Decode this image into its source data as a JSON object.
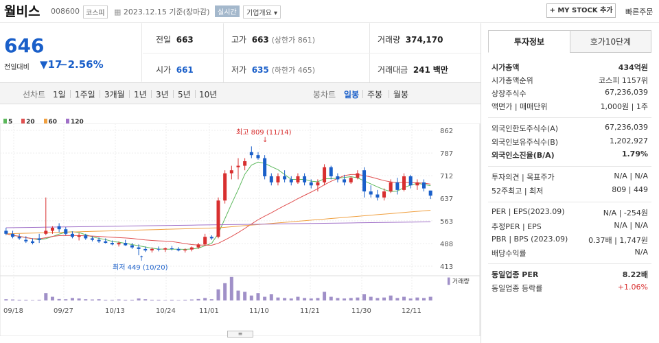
{
  "header": {
    "name": "월비스",
    "code": "008600",
    "market": "코스피",
    "date": "2023.12.15 기준(장마감)",
    "realtime": "실시간",
    "company_info": "기업개요 ▾",
    "mystock": "+ MY STOCK 추가",
    "quick_order": "빠른주문"
  },
  "price": {
    "current": "646",
    "change_label": "전일대비",
    "change_value": "▼17",
    "change_pct": "−2.56%"
  },
  "quotes": {
    "prev_label": "전일",
    "prev": "663",
    "high_label": "고가",
    "high": "663",
    "upper": "(상한가 861)",
    "vol_label": "거래량",
    "vol": "374,170",
    "open_label": "시가",
    "open": "661",
    "low_label": "저가",
    "low": "635",
    "lower": "(하한가 465)",
    "amt_label": "거래대금",
    "amt": "241",
    "amt_unit": "백만"
  },
  "tabs": {
    "line_chart": "선차트",
    "d1": "1일",
    "w1": "1주일",
    "m3": "3개월",
    "y1": "1년",
    "y3": "3년",
    "y5": "5년",
    "y10": "10년",
    "candle": "봉차트",
    "daily": "일봉",
    "weekly": "주봉",
    "monthly": "월봉"
  },
  "legend": {
    "ma5": "5",
    "ma20": "20",
    "ma60": "60",
    "ma120": "120"
  },
  "colors": {
    "up": "#d82f2f",
    "down": "#1a5fc9",
    "ma5": "#5cb85c",
    "ma20": "#e05050",
    "ma60": "#f0a040",
    "ma120": "#a070c8",
    "volume": "#a090c8"
  },
  "annotations": {
    "high": "최고 809 (11/14)",
    "low": "최저 449 (10/20)",
    "volume_label": "거래량"
  },
  "chart_data": {
    "type": "candlestick",
    "y_ticks": [
      "862",
      "787",
      "712",
      "637",
      "563",
      "488",
      "413"
    ],
    "ylim": [
      413,
      862
    ],
    "x_ticks": [
      "09/18",
      "09/27",
      "10/13",
      "10/24",
      "11/01",
      "11/10",
      "11/21",
      "11/30",
      "12/11"
    ],
    "ohlc": [
      [
        530,
        540,
        515,
        520
      ],
      [
        520,
        530,
        505,
        510
      ],
      [
        510,
        520,
        500,
        505
      ],
      [
        500,
        512,
        490,
        495
      ],
      [
        495,
        505,
        485,
        490
      ],
      [
        505,
        520,
        490,
        500
      ],
      [
        520,
        640,
        515,
        530
      ],
      [
        530,
        545,
        520,
        540
      ],
      [
        545,
        555,
        525,
        535
      ],
      [
        535,
        542,
        515,
        520
      ],
      [
        520,
        528,
        505,
        510
      ],
      [
        510,
        522,
        498,
        515
      ],
      [
        515,
        520,
        500,
        505
      ],
      [
        505,
        512,
        495,
        500
      ],
      [
        500,
        508,
        490,
        495
      ],
      [
        495,
        505,
        488,
        490
      ],
      [
        490,
        498,
        482,
        485
      ],
      [
        485,
        495,
        478,
        490
      ],
      [
        490,
        500,
        480,
        482
      ],
      [
        482,
        490,
        470,
        475
      ],
      [
        475,
        485,
        449,
        470
      ],
      [
        470,
        478,
        460,
        465
      ],
      [
        465,
        475,
        458,
        470
      ],
      [
        470,
        478,
        462,
        468
      ],
      [
        468,
        475,
        460,
        472
      ],
      [
        472,
        480,
        465,
        470
      ],
      [
        470,
        476,
        462,
        465
      ],
      [
        465,
        472,
        458,
        468
      ],
      [
        468,
        478,
        462,
        475
      ],
      [
        475,
        490,
        470,
        485
      ],
      [
        485,
        520,
        480,
        510
      ],
      [
        510,
        515,
        500,
        505
      ],
      [
        510,
        640,
        505,
        630
      ],
      [
        630,
        730,
        620,
        720
      ],
      [
        720,
        745,
        700,
        730
      ],
      [
        740,
        770,
        700,
        745
      ],
      [
        745,
        770,
        730,
        760
      ],
      [
        790,
        809,
        770,
        780
      ],
      [
        780,
        790,
        765,
        770
      ],
      [
        770,
        780,
        700,
        710
      ],
      [
        710,
        720,
        680,
        690
      ],
      [
        690,
        720,
        680,
        710
      ],
      [
        710,
        730,
        690,
        700
      ],
      [
        700,
        710,
        680,
        690
      ],
      [
        690,
        720,
        685,
        710
      ],
      [
        710,
        720,
        680,
        690
      ],
      [
        690,
        700,
        670,
        680
      ],
      [
        680,
        700,
        660,
        690
      ],
      [
        690,
        750,
        680,
        740
      ],
      [
        740,
        745,
        700,
        710
      ],
      [
        710,
        720,
        690,
        700
      ],
      [
        700,
        715,
        680,
        690
      ],
      [
        690,
        710,
        685,
        705
      ],
      [
        705,
        730,
        700,
        720
      ],
      [
        730,
        740,
        640,
        660
      ],
      [
        660,
        680,
        640,
        650
      ],
      [
        650,
        665,
        630,
        640
      ],
      [
        640,
        670,
        630,
        660
      ],
      [
        660,
        700,
        655,
        690
      ],
      [
        690,
        705,
        650,
        665
      ],
      [
        665,
        720,
        660,
        710
      ],
      [
        710,
        715,
        670,
        680
      ],
      [
        680,
        700,
        665,
        690
      ],
      [
        690,
        700,
        660,
        670
      ],
      [
        663,
        663,
        635,
        646
      ]
    ],
    "volume_rel": [
      0.05,
      0.04,
      0.03,
      0.03,
      0.02,
      0.03,
      0.3,
      0.15,
      0.06,
      0.05,
      0.1,
      0.08,
      0.05,
      0.04,
      0.05,
      0.03,
      0.03,
      0.04,
      0.03,
      0.03,
      0.08,
      0.05,
      0.03,
      0.03,
      0.02,
      0.03,
      0.02,
      0.03,
      0.04,
      0.06,
      0.1,
      0.05,
      0.45,
      0.7,
      0.95,
      0.4,
      0.35,
      0.2,
      0.3,
      0.15,
      0.25,
      0.12,
      0.1,
      0.08,
      0.15,
      0.1,
      0.08,
      0.1,
      0.35,
      0.15,
      0.1,
      0.08,
      0.1,
      0.12,
      0.25,
      0.15,
      0.1,
      0.12,
      0.2,
      0.1,
      0.15,
      0.08,
      0.12,
      0.1,
      0.15
    ]
  },
  "invest": {
    "tab1": "투자정보",
    "tab2": "호가10단계",
    "rows": [
      {
        "label": "시가총액",
        "value": "434억원"
      },
      {
        "label": "시가총액순위",
        "value": "코스피 1157위"
      },
      {
        "label": "상장주식수",
        "value": "67,236,039"
      },
      {
        "label": "액면가 | 매매단위",
        "value": "1,000원 | 1주"
      },
      {
        "label": "외국인한도주식수(A)",
        "value": "67,236,039"
      },
      {
        "label": "외국인보유주식수(B)",
        "value": "1,202,927"
      },
      {
        "label": "외국인소진율(B/A)",
        "value": "1.79%"
      },
      {
        "label": "투자의견 | 목표주가",
        "value": "N/A | N/A"
      },
      {
        "label": "52주최고 | 최저",
        "value": "809 | 449"
      },
      {
        "label": "PER | EPS(2023.09)",
        "value": "N/A | -254원"
      },
      {
        "label": "추정PER | EPS",
        "value": "N/A | N/A"
      },
      {
        "label": "PBR | BPS (2023.09)",
        "value": "0.37배 | 1,747원"
      },
      {
        "label": "배당수익률",
        "value": "N/A"
      },
      {
        "label": "동일업종 PER",
        "value": "8.22배"
      },
      {
        "label": "동일업종 등락률",
        "value": "+1.06%"
      }
    ]
  }
}
